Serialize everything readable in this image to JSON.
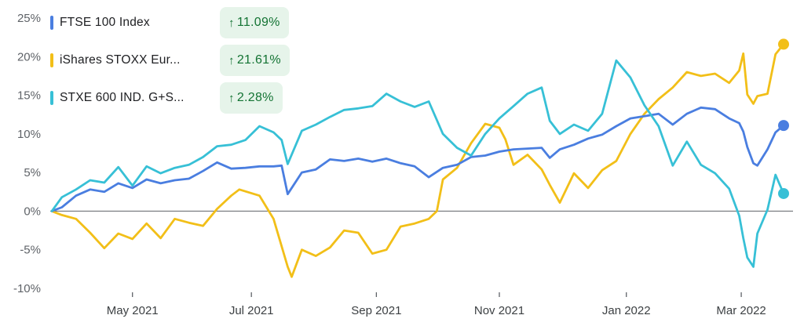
{
  "chart_data": {
    "type": "line",
    "y_unit": "%",
    "ylim": [
      -10,
      25
    ],
    "y_ticks": [
      "25%",
      "20%",
      "15%",
      "10%",
      "5%",
      "0%",
      "-5%",
      "-10%"
    ],
    "y_tick_values": [
      25,
      20,
      15,
      10,
      5,
      0,
      -5,
      -10
    ],
    "x_range": [
      "2021-03-24",
      "2022-03-22"
    ],
    "x_ticks": [
      "May 2021",
      "Jul 2021",
      "Sep 2021",
      "Nov 2021",
      "Jan 2022",
      "Mar 2022"
    ],
    "x_tick_values": [
      "2021-05-03",
      "2021-07-01",
      "2021-09-01",
      "2021-11-01",
      "2022-01-03",
      "2022-03-01"
    ],
    "baseline": 0,
    "grid": false,
    "legend_position": "top-left",
    "series": [
      {
        "name": "FTSE 100 Index",
        "change": "11.09%",
        "color": "#4a7ee0",
        "points": [
          [
            "2021-03-24",
            0.0
          ],
          [
            "2021-03-29",
            0.5
          ],
          [
            "2021-04-05",
            2.0
          ],
          [
            "2021-04-12",
            2.8
          ],
          [
            "2021-04-19",
            2.5
          ],
          [
            "2021-04-26",
            3.6
          ],
          [
            "2021-05-03",
            3.0
          ],
          [
            "2021-05-10",
            4.1
          ],
          [
            "2021-05-17",
            3.6
          ],
          [
            "2021-05-24",
            4.0
          ],
          [
            "2021-05-31",
            4.2
          ],
          [
            "2021-06-07",
            5.2
          ],
          [
            "2021-06-14",
            6.3
          ],
          [
            "2021-06-21",
            5.5
          ],
          [
            "2021-06-28",
            5.6
          ],
          [
            "2021-07-05",
            5.8
          ],
          [
            "2021-07-12",
            5.8
          ],
          [
            "2021-07-16",
            5.9
          ],
          [
            "2021-07-19",
            2.2
          ],
          [
            "2021-07-26",
            5.0
          ],
          [
            "2021-08-02",
            5.4
          ],
          [
            "2021-08-09",
            6.7
          ],
          [
            "2021-08-16",
            6.5
          ],
          [
            "2021-08-23",
            6.8
          ],
          [
            "2021-08-30",
            6.4
          ],
          [
            "2021-09-06",
            6.8
          ],
          [
            "2021-09-13",
            6.2
          ],
          [
            "2021-09-20",
            5.8
          ],
          [
            "2021-09-27",
            4.4
          ],
          [
            "2021-10-04",
            5.6
          ],
          [
            "2021-10-11",
            6.0
          ],
          [
            "2021-10-18",
            7.0
          ],
          [
            "2021-10-25",
            7.2
          ],
          [
            "2021-11-01",
            7.7
          ],
          [
            "2021-11-08",
            8.0
          ],
          [
            "2021-11-15",
            8.1
          ],
          [
            "2021-11-22",
            8.2
          ],
          [
            "2021-11-26",
            6.9
          ],
          [
            "2021-12-01",
            8.0
          ],
          [
            "2021-12-08",
            8.6
          ],
          [
            "2021-12-15",
            9.4
          ],
          [
            "2021-12-22",
            9.9
          ],
          [
            "2021-12-29",
            11.0
          ],
          [
            "2022-01-05",
            12.0
          ],
          [
            "2022-01-12",
            12.3
          ],
          [
            "2022-01-19",
            12.6
          ],
          [
            "2022-01-26",
            11.2
          ],
          [
            "2022-02-02",
            12.6
          ],
          [
            "2022-02-09",
            13.4
          ],
          [
            "2022-02-16",
            13.2
          ],
          [
            "2022-02-23",
            12.0
          ],
          [
            "2022-02-28",
            11.4
          ],
          [
            "2022-03-02",
            10.3
          ],
          [
            "2022-03-04",
            8.3
          ],
          [
            "2022-03-07",
            6.2
          ],
          [
            "2022-03-09",
            5.9
          ],
          [
            "2022-03-14",
            8.0
          ],
          [
            "2022-03-18",
            10.2
          ],
          [
            "2022-03-22",
            11.09
          ]
        ]
      },
      {
        "name": "iShares STOXX Eur...",
        "change": "21.61%",
        "color": "#f2bf18",
        "points": [
          [
            "2021-03-24",
            0.0
          ],
          [
            "2021-03-29",
            -0.5
          ],
          [
            "2021-04-05",
            -1.0
          ],
          [
            "2021-04-12",
            -2.8
          ],
          [
            "2021-04-19",
            -4.8
          ],
          [
            "2021-04-26",
            -2.9
          ],
          [
            "2021-05-03",
            -3.6
          ],
          [
            "2021-05-10",
            -1.6
          ],
          [
            "2021-05-17",
            -3.5
          ],
          [
            "2021-05-24",
            -1.0
          ],
          [
            "2021-05-31",
            -1.5
          ],
          [
            "2021-06-07",
            -1.9
          ],
          [
            "2021-06-14",
            0.3
          ],
          [
            "2021-06-21",
            2.0
          ],
          [
            "2021-06-25",
            2.8
          ],
          [
            "2021-07-05",
            2.0
          ],
          [
            "2021-07-12",
            -1.0
          ],
          [
            "2021-07-19",
            -7.2
          ],
          [
            "2021-07-21",
            -8.5
          ],
          [
            "2021-07-26",
            -5.0
          ],
          [
            "2021-08-02",
            -5.8
          ],
          [
            "2021-08-09",
            -4.7
          ],
          [
            "2021-08-16",
            -2.5
          ],
          [
            "2021-08-23",
            -2.8
          ],
          [
            "2021-08-30",
            -5.5
          ],
          [
            "2021-09-06",
            -5.0
          ],
          [
            "2021-09-13",
            -2.0
          ],
          [
            "2021-09-20",
            -1.6
          ],
          [
            "2021-09-27",
            -1.0
          ],
          [
            "2021-10-01",
            0.0
          ],
          [
            "2021-10-04",
            4.1
          ],
          [
            "2021-10-11",
            5.6
          ],
          [
            "2021-10-18",
            8.8
          ],
          [
            "2021-10-25",
            11.3
          ],
          [
            "2021-11-01",
            10.8
          ],
          [
            "2021-11-04",
            9.3
          ],
          [
            "2021-11-08",
            6.0
          ],
          [
            "2021-11-15",
            7.3
          ],
          [
            "2021-11-22",
            5.4
          ],
          [
            "2021-11-26",
            3.4
          ],
          [
            "2021-12-01",
            1.1
          ],
          [
            "2021-12-08",
            4.9
          ],
          [
            "2021-12-15",
            3.0
          ],
          [
            "2021-12-22",
            5.3
          ],
          [
            "2021-12-29",
            6.5
          ],
          [
            "2022-01-05",
            10.0
          ],
          [
            "2022-01-12",
            12.6
          ],
          [
            "2022-01-19",
            14.5
          ],
          [
            "2022-01-26",
            16.0
          ],
          [
            "2022-02-02",
            18.0
          ],
          [
            "2022-02-09",
            17.5
          ],
          [
            "2022-02-16",
            17.8
          ],
          [
            "2022-02-23",
            16.6
          ],
          [
            "2022-02-28",
            18.2
          ],
          [
            "2022-03-02",
            20.4
          ],
          [
            "2022-03-04",
            15.1
          ],
          [
            "2022-03-07",
            13.9
          ],
          [
            "2022-03-09",
            14.9
          ],
          [
            "2022-03-14",
            15.2
          ],
          [
            "2022-03-18",
            20.3
          ],
          [
            "2022-03-22",
            21.61
          ]
        ]
      },
      {
        "name": "STXE 600 IND. G+S...",
        "change": "2.28%",
        "color": "#37c0d6",
        "points": [
          [
            "2021-03-24",
            0.0
          ],
          [
            "2021-03-29",
            1.8
          ],
          [
            "2021-04-05",
            2.8
          ],
          [
            "2021-04-12",
            4.0
          ],
          [
            "2021-04-19",
            3.7
          ],
          [
            "2021-04-26",
            5.7
          ],
          [
            "2021-05-03",
            3.3
          ],
          [
            "2021-05-10",
            5.8
          ],
          [
            "2021-05-17",
            4.9
          ],
          [
            "2021-05-24",
            5.6
          ],
          [
            "2021-05-31",
            6.0
          ],
          [
            "2021-06-07",
            7.0
          ],
          [
            "2021-06-14",
            8.4
          ],
          [
            "2021-06-21",
            8.6
          ],
          [
            "2021-06-28",
            9.2
          ],
          [
            "2021-07-05",
            11.0
          ],
          [
            "2021-07-12",
            10.2
          ],
          [
            "2021-07-16",
            9.2
          ],
          [
            "2021-07-19",
            6.1
          ],
          [
            "2021-07-26",
            10.4
          ],
          [
            "2021-08-02",
            11.2
          ],
          [
            "2021-08-09",
            12.2
          ],
          [
            "2021-08-16",
            13.1
          ],
          [
            "2021-08-23",
            13.3
          ],
          [
            "2021-08-30",
            13.6
          ],
          [
            "2021-09-06",
            15.2
          ],
          [
            "2021-09-13",
            14.2
          ],
          [
            "2021-09-20",
            13.5
          ],
          [
            "2021-09-27",
            14.2
          ],
          [
            "2021-10-04",
            10.0
          ],
          [
            "2021-10-11",
            8.2
          ],
          [
            "2021-10-18",
            7.2
          ],
          [
            "2021-10-25",
            10.0
          ],
          [
            "2021-11-01",
            12.0
          ],
          [
            "2021-11-08",
            13.6
          ],
          [
            "2021-11-15",
            15.2
          ],
          [
            "2021-11-22",
            16.0
          ],
          [
            "2021-11-26",
            11.7
          ],
          [
            "2021-12-01",
            10.0
          ],
          [
            "2021-12-08",
            11.2
          ],
          [
            "2021-12-15",
            10.4
          ],
          [
            "2021-12-22",
            12.6
          ],
          [
            "2021-12-29",
            19.5
          ],
          [
            "2022-01-05",
            17.3
          ],
          [
            "2022-01-12",
            13.7
          ],
          [
            "2022-01-19",
            11.0
          ],
          [
            "2022-01-26",
            5.9
          ],
          [
            "2022-02-02",
            9.0
          ],
          [
            "2022-02-09",
            6.0
          ],
          [
            "2022-02-16",
            4.9
          ],
          [
            "2022-02-23",
            2.9
          ],
          [
            "2022-02-28",
            -0.6
          ],
          [
            "2022-03-02",
            -3.5
          ],
          [
            "2022-03-04",
            -6.0
          ],
          [
            "2022-03-07",
            -7.2
          ],
          [
            "2022-03-09",
            -2.9
          ],
          [
            "2022-03-14",
            0.2
          ],
          [
            "2022-03-18",
            4.7
          ],
          [
            "2022-03-22",
            2.28
          ]
        ]
      }
    ]
  }
}
